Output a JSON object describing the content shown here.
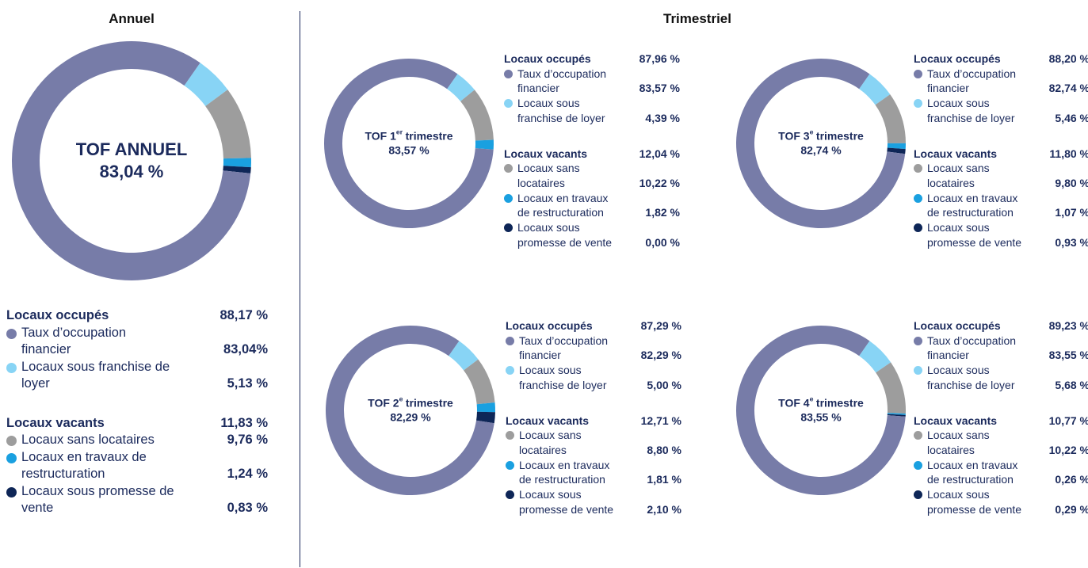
{
  "headings": {
    "annual": "Annuel",
    "quarterly": "Trimestriel"
  },
  "chart_data": [
    {
      "type": "donut",
      "center_title": "TOF ANNUEL",
      "center_value_label": "83,04 %",
      "groups": [
        {
          "name": "Locaux occupés",
          "value": 88.17,
          "value_label": "88,17 %",
          "items": [
            {
              "name": "Taux d’occupation financier",
              "color": "#777ca8",
              "value": 83.04,
              "value_label": "83,04%"
            },
            {
              "name": "Locaux sous franchise de loyer",
              "color": "#88d4f5",
              "value": 5.13,
              "value_label": "5,13 %"
            }
          ]
        },
        {
          "name": "Locaux vacants",
          "value": 11.83,
          "value_label": "11,83 %",
          "items": [
            {
              "name": "Locaux sans locataires",
              "color": "#9d9d9d",
              "value": 9.76,
              "value_label": "9,76 %"
            },
            {
              "name": "Locaux en travaux de restructuration",
              "color": "#1aa0e0",
              "value": 1.24,
              "value_label": "1,24 %"
            },
            {
              "name": "Locaux sous promesse de vente",
              "color": "#0e2657",
              "value": 0.83,
              "value_label": "0,83 %"
            }
          ]
        }
      ]
    },
    {
      "type": "donut",
      "center_title": "TOF 1",
      "center_sup": "er",
      "center_rest": "trimestre",
      "center_value_label": "83,57 %",
      "groups": [
        {
          "name": "Locaux occupés",
          "value": 87.96,
          "value_label": "87,96 %",
          "items": [
            {
              "name": "Taux d’occupation financier",
              "color": "#777ca8",
              "value": 83.57,
              "value_label": "83,57 %"
            },
            {
              "name": "Locaux sous franchise de loyer",
              "color": "#88d4f5",
              "value": 4.39,
              "value_label": "4,39 %"
            }
          ]
        },
        {
          "name": "Locaux vacants",
          "value": 12.04,
          "value_label": "12,04 %",
          "items": [
            {
              "name": "Locaux sans locataires",
              "color": "#9d9d9d",
              "value": 10.22,
              "value_label": "10,22 %"
            },
            {
              "name": "Locaux en travaux de restructuration",
              "color": "#1aa0e0",
              "value": 1.82,
              "value_label": "1,82 %"
            },
            {
              "name": "Locaux sous promesse de vente",
              "color": "#0e2657",
              "value": 0.0,
              "value_label": "0,00 %"
            }
          ]
        }
      ]
    },
    {
      "type": "donut",
      "center_title": "TOF 2",
      "center_sup": "e",
      "center_rest": "trimestre",
      "center_value_label": "82,29 %",
      "groups": [
        {
          "name": "Locaux occupés",
          "value": 87.29,
          "value_label": "87,29 %",
          "items": [
            {
              "name": "Taux d’occupation financier",
              "color": "#777ca8",
              "value": 82.29,
              "value_label": "82,29 %"
            },
            {
              "name": "Locaux sous franchise de loyer",
              "color": "#88d4f5",
              "value": 5.0,
              "value_label": "5,00 %"
            }
          ]
        },
        {
          "name": "Locaux vacants",
          "value": 12.71,
          "value_label": "12,71 %",
          "items": [
            {
              "name": "Locaux sans locataires",
              "color": "#9d9d9d",
              "value": 8.8,
              "value_label": "8,80 %"
            },
            {
              "name": "Locaux en travaux de restructuration",
              "color": "#1aa0e0",
              "value": 1.81,
              "value_label": "1,81 %"
            },
            {
              "name": "Locaux sous promesse de vente",
              "color": "#0e2657",
              "value": 2.1,
              "value_label": "2,10 %"
            }
          ]
        }
      ]
    },
    {
      "type": "donut",
      "center_title": "TOF 3",
      "center_sup": "e",
      "center_rest": "trimestre",
      "center_value_label": "82,74 %",
      "groups": [
        {
          "name": "Locaux occupés",
          "value": 88.2,
          "value_label": "88,20 %",
          "items": [
            {
              "name": "Taux d’occupation financier",
              "color": "#777ca8",
              "value": 82.74,
              "value_label": "82,74 %"
            },
            {
              "name": "Locaux sous franchise de loyer",
              "color": "#88d4f5",
              "value": 5.46,
              "value_label": "5,46 %"
            }
          ]
        },
        {
          "name": "Locaux vacants",
          "value": 11.8,
          "value_label": "11,80 %",
          "items": [
            {
              "name": "Locaux sans locataires",
              "color": "#9d9d9d",
              "value": 9.8,
              "value_label": "9,80 %"
            },
            {
              "name": "Locaux en travaux de restructuration",
              "color": "#1aa0e0",
              "value": 1.07,
              "value_label": "1,07 %"
            },
            {
              "name": "Locaux sous promesse de vente",
              "color": "#0e2657",
              "value": 0.93,
              "value_label": "0,93 %"
            }
          ]
        }
      ]
    },
    {
      "type": "donut",
      "center_title": "TOF 4",
      "center_sup": "e",
      "center_rest": "trimestre",
      "center_value_label": "83,55 %",
      "groups": [
        {
          "name": "Locaux occupés",
          "value": 89.23,
          "value_label": "89,23 %",
          "items": [
            {
              "name": "Taux d’occupation financier",
              "color": "#777ca8",
              "value": 83.55,
              "value_label": "83,55 %"
            },
            {
              "name": "Locaux sous franchise de loyer",
              "color": "#88d4f5",
              "value": 5.68,
              "value_label": "5,68 %"
            }
          ]
        },
        {
          "name": "Locaux vacants",
          "value": 10.77,
          "value_label": "10,77 %",
          "items": [
            {
              "name": "Locaux sans locataires",
              "color": "#9d9d9d",
              "value": 10.22,
              "value_label": "10,22 %"
            },
            {
              "name": "Locaux en travaux de restructuration",
              "color": "#1aa0e0",
              "value": 0.26,
              "value_label": "0,26 %"
            },
            {
              "name": "Locaux sous promesse de vente",
              "color": "#0e2657",
              "value": 0.29,
              "value_label": "0,29 %"
            }
          ]
        }
      ]
    }
  ]
}
